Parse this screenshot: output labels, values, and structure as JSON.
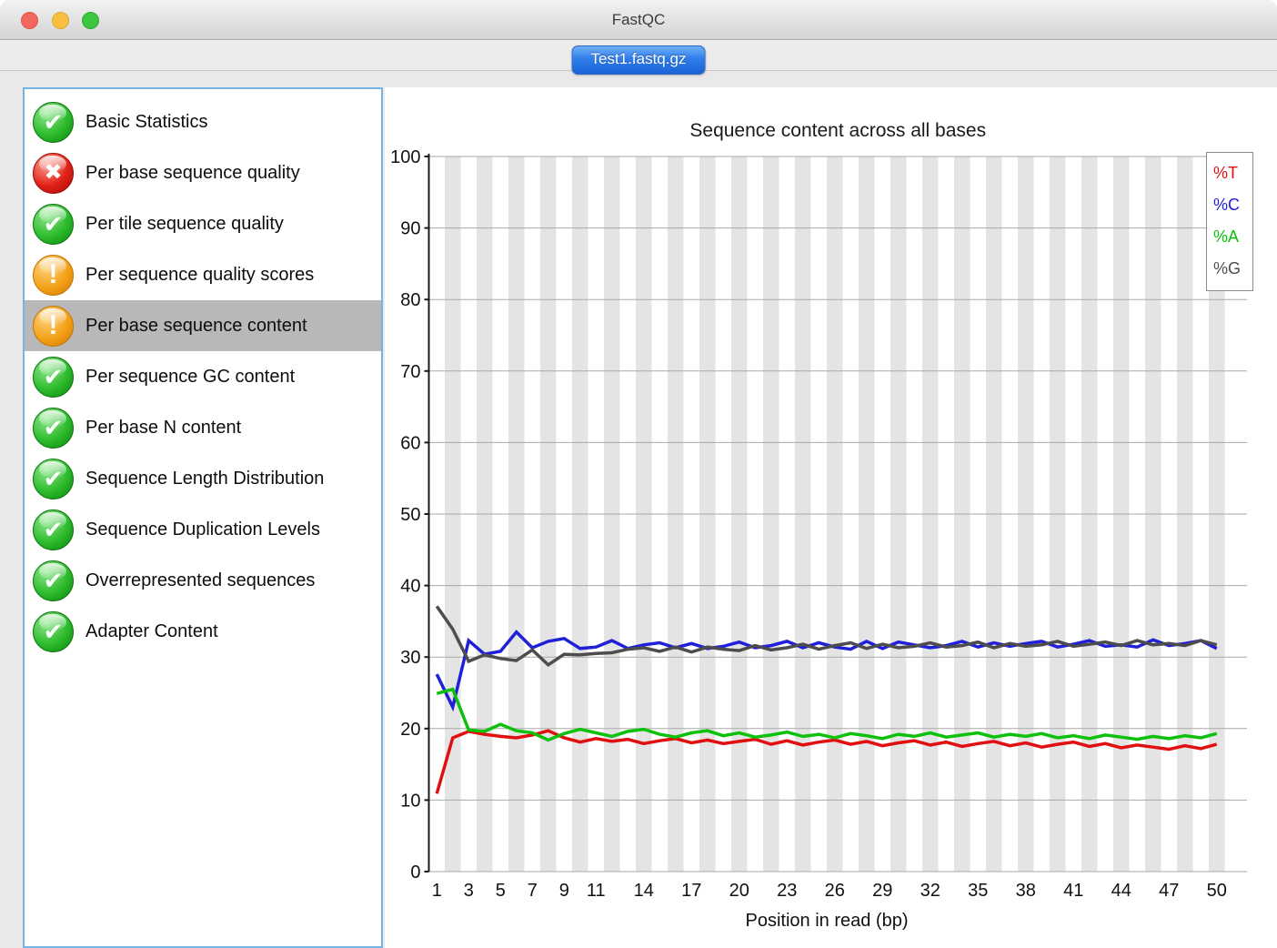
{
  "window": {
    "title": "FastQC",
    "traffic_lights": [
      "close",
      "minimize",
      "zoom"
    ]
  },
  "tab": {
    "label": "Test1.fastq.gz"
  },
  "sidebar": {
    "items": [
      {
        "label": "Basic Statistics",
        "status": "pass",
        "selected": false
      },
      {
        "label": "Per base sequence quality",
        "status": "fail",
        "selected": false
      },
      {
        "label": "Per tile sequence quality",
        "status": "pass",
        "selected": false
      },
      {
        "label": "Per sequence quality scores",
        "status": "warn",
        "selected": false
      },
      {
        "label": "Per base sequence content",
        "status": "warn",
        "selected": true
      },
      {
        "label": "Per sequence GC content",
        "status": "pass",
        "selected": false
      },
      {
        "label": "Per base N content",
        "status": "pass",
        "selected": false
      },
      {
        "label": "Sequence Length Distribution",
        "status": "pass",
        "selected": false
      },
      {
        "label": "Sequence Duplication Levels",
        "status": "pass",
        "selected": false
      },
      {
        "label": "Overrepresented sequences",
        "status": "pass",
        "selected": false
      },
      {
        "label": "Adapter Content",
        "status": "pass",
        "selected": false
      }
    ]
  },
  "icons": {
    "pass": {
      "name": "check-icon",
      "glyph": "✔"
    },
    "fail": {
      "name": "cross-icon",
      "glyph": "✖"
    },
    "warn": {
      "name": "exclamation-icon",
      "glyph": "!"
    }
  },
  "colors": {
    "status_pass": "#2dbb2d",
    "status_fail": "#e02218",
    "status_warn": "#f29d13",
    "tab_accent": "#1b63d7",
    "selected_row": "#b8b8b8",
    "stripe": "#e4e4e4",
    "grid": "#a9a9a9",
    "axis": "#1a1a1a"
  },
  "chart_data": {
    "type": "line",
    "title": "Sequence content across all bases",
    "xlabel": "Position in read (bp)",
    "ylabel": "",
    "ylim": [
      0,
      100
    ],
    "y_ticks": [
      0,
      10,
      20,
      30,
      40,
      50,
      60,
      70,
      80,
      90,
      100
    ],
    "x_tick_labels": [
      1,
      3,
      5,
      7,
      9,
      11,
      14,
      17,
      20,
      23,
      26,
      29,
      32,
      35,
      38,
      41,
      44,
      47,
      50
    ],
    "grid": "horizontal",
    "background": "alternating-vertical-stripes",
    "legend_position": "top-right",
    "x": [
      1,
      2,
      3,
      4,
      5,
      6,
      7,
      8,
      9,
      10,
      11,
      12,
      13,
      14,
      15,
      16,
      17,
      18,
      19,
      20,
      21,
      22,
      23,
      24,
      25,
      26,
      27,
      28,
      29,
      30,
      31,
      32,
      33,
      34,
      35,
      36,
      37,
      38,
      39,
      40,
      41,
      42,
      43,
      44,
      45,
      46,
      47,
      48,
      49,
      50
    ],
    "series": [
      {
        "name": "%T",
        "color": "#e01010",
        "values": [
          10.9,
          18.7,
          19.6,
          19.2,
          18.9,
          18.7,
          19.1,
          19.7,
          18.7,
          18.1,
          18.6,
          18.2,
          18.5,
          17.9,
          18.3,
          18.6,
          18.0,
          18.4,
          17.9,
          18.2,
          18.5,
          17.8,
          18.3,
          17.7,
          18.1,
          18.4,
          17.8,
          18.2,
          17.6,
          18.0,
          18.3,
          17.7,
          18.1,
          17.5,
          17.9,
          18.2,
          17.6,
          18.0,
          17.4,
          17.8,
          18.1,
          17.5,
          17.9,
          17.3,
          17.7,
          17.4,
          17.1,
          17.6,
          17.2,
          17.8
        ]
      },
      {
        "name": "%C",
        "color": "#2020d8",
        "values": [
          27.6,
          23.0,
          32.3,
          30.4,
          30.8,
          33.5,
          31.3,
          32.2,
          32.6,
          31.2,
          31.4,
          32.3,
          31.2,
          31.7,
          32.0,
          31.3,
          31.9,
          31.2,
          31.5,
          32.1,
          31.3,
          31.6,
          32.2,
          31.3,
          32.0,
          31.4,
          31.1,
          32.2,
          31.2,
          32.1,
          31.7,
          31.3,
          31.6,
          32.2,
          31.4,
          32.0,
          31.5,
          31.9,
          32.2,
          31.4,
          31.8,
          32.3,
          31.5,
          31.7,
          31.4,
          32.4,
          31.6,
          31.9,
          32.3,
          31.2
        ]
      },
      {
        "name": "%A",
        "color": "#0cc00c",
        "values": [
          24.9,
          25.5,
          19.8,
          19.6,
          20.6,
          19.7,
          19.4,
          18.4,
          19.3,
          19.9,
          19.4,
          18.9,
          19.6,
          19.9,
          19.2,
          18.8,
          19.4,
          19.7,
          19.0,
          19.4,
          18.8,
          19.1,
          19.5,
          18.9,
          19.2,
          18.7,
          19.3,
          19.0,
          18.6,
          19.2,
          18.9,
          19.4,
          18.8,
          19.1,
          19.4,
          18.8,
          19.2,
          18.9,
          19.3,
          18.7,
          19.0,
          18.6,
          19.1,
          18.8,
          18.5,
          18.9,
          18.6,
          19.0,
          18.7,
          19.3
        ]
      },
      {
        "name": "%G",
        "color": "#4d4d4d",
        "values": [
          37.1,
          33.9,
          29.4,
          30.3,
          29.8,
          29.5,
          31.0,
          28.9,
          30.4,
          30.3,
          30.5,
          30.6,
          31.1,
          31.3,
          30.8,
          31.4,
          30.7,
          31.4,
          31.1,
          30.9,
          31.6,
          31.0,
          31.3,
          31.8,
          31.1,
          31.6,
          32.0,
          31.2,
          31.8,
          31.3,
          31.5,
          32.0,
          31.4,
          31.6,
          32.1,
          31.3,
          31.9,
          31.5,
          31.7,
          32.2,
          31.5,
          31.8,
          32.1,
          31.6,
          32.3,
          31.7,
          31.9,
          31.6,
          32.3,
          31.7
        ]
      }
    ]
  }
}
